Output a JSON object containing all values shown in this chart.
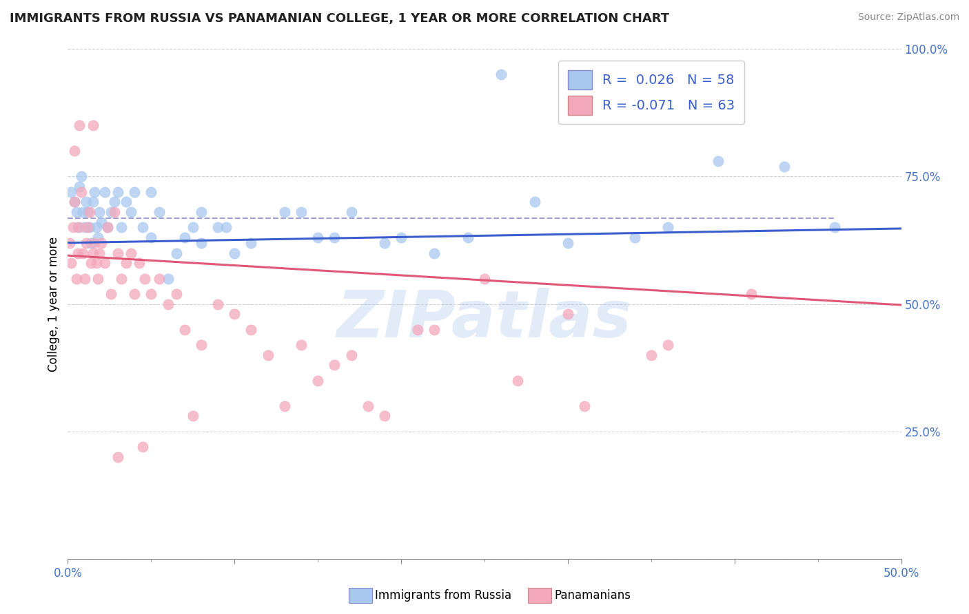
{
  "title": "IMMIGRANTS FROM RUSSIA VS PANAMANIAN COLLEGE, 1 YEAR OR MORE CORRELATION CHART",
  "source_text": "Source: ZipAtlas.com",
  "ylabel": "College, 1 year or more",
  "xlim": [
    0.0,
    0.5
  ],
  "ylim": [
    0.0,
    1.0
  ],
  "blue_R": 0.026,
  "blue_N": 58,
  "pink_R": -0.071,
  "pink_N": 63,
  "blue_color": "#A8C8F0",
  "pink_color": "#F4A8BC",
  "blue_line_color": "#3A5FCD",
  "pink_line_color": "#E05878",
  "dashed_line_color": "#8888CC",
  "dashed_line_y": 0.668,
  "watermark": "ZIPatlas",
  "blue_trend_x0": 0.0,
  "blue_trend_y0": 0.62,
  "blue_trend_x1": 0.5,
  "blue_trend_y1": 0.648,
  "pink_trend_x0": 0.0,
  "pink_trend_y0": 0.595,
  "pink_trend_x1": 0.5,
  "pink_trend_y1": 0.498,
  "blue_scatter_x": [
    0.002,
    0.004,
    0.005,
    0.006,
    0.007,
    0.008,
    0.009,
    0.01,
    0.011,
    0.012,
    0.013,
    0.014,
    0.015,
    0.016,
    0.017,
    0.018,
    0.019,
    0.02,
    0.022,
    0.024,
    0.026,
    0.028,
    0.03,
    0.032,
    0.035,
    0.038,
    0.04,
    0.045,
    0.05,
    0.055,
    0.06,
    0.065,
    0.07,
    0.075,
    0.08,
    0.09,
    0.1,
    0.11,
    0.13,
    0.15,
    0.17,
    0.19,
    0.22,
    0.26,
    0.28,
    0.3,
    0.34,
    0.36,
    0.39,
    0.43,
    0.46,
    0.2,
    0.24,
    0.08,
    0.095,
    0.14,
    0.16,
    0.05
  ],
  "blue_scatter_y": [
    0.72,
    0.7,
    0.68,
    0.65,
    0.73,
    0.75,
    0.68,
    0.65,
    0.7,
    0.68,
    0.65,
    0.62,
    0.7,
    0.72,
    0.65,
    0.63,
    0.68,
    0.66,
    0.72,
    0.65,
    0.68,
    0.7,
    0.72,
    0.65,
    0.7,
    0.68,
    0.72,
    0.65,
    0.63,
    0.68,
    0.55,
    0.6,
    0.63,
    0.65,
    0.68,
    0.65,
    0.6,
    0.62,
    0.68,
    0.63,
    0.68,
    0.62,
    0.6,
    0.95,
    0.7,
    0.62,
    0.63,
    0.65,
    0.78,
    0.77,
    0.65,
    0.63,
    0.63,
    0.62,
    0.65,
    0.68,
    0.63,
    0.72
  ],
  "pink_scatter_x": [
    0.001,
    0.002,
    0.003,
    0.004,
    0.005,
    0.006,
    0.007,
    0.008,
    0.009,
    0.01,
    0.011,
    0.012,
    0.013,
    0.014,
    0.015,
    0.016,
    0.017,
    0.018,
    0.019,
    0.02,
    0.022,
    0.024,
    0.026,
    0.028,
    0.03,
    0.032,
    0.035,
    0.038,
    0.04,
    0.043,
    0.046,
    0.05,
    0.055,
    0.06,
    0.065,
    0.07,
    0.08,
    0.09,
    0.1,
    0.12,
    0.14,
    0.16,
    0.18,
    0.21,
    0.25,
    0.3,
    0.36,
    0.41,
    0.03,
    0.045,
    0.075,
    0.11,
    0.13,
    0.15,
    0.17,
    0.19,
    0.22,
    0.27,
    0.31,
    0.35,
    0.004,
    0.007,
    0.015
  ],
  "pink_scatter_y": [
    0.62,
    0.58,
    0.65,
    0.7,
    0.55,
    0.6,
    0.65,
    0.72,
    0.6,
    0.55,
    0.62,
    0.65,
    0.68,
    0.58,
    0.6,
    0.62,
    0.58,
    0.55,
    0.6,
    0.62,
    0.58,
    0.65,
    0.52,
    0.68,
    0.6,
    0.55,
    0.58,
    0.6,
    0.52,
    0.58,
    0.55,
    0.52,
    0.55,
    0.5,
    0.52,
    0.45,
    0.42,
    0.5,
    0.48,
    0.4,
    0.42,
    0.38,
    0.3,
    0.45,
    0.55,
    0.48,
    0.42,
    0.52,
    0.2,
    0.22,
    0.28,
    0.45,
    0.3,
    0.35,
    0.4,
    0.28,
    0.45,
    0.35,
    0.3,
    0.4,
    0.8,
    0.85,
    0.85
  ]
}
